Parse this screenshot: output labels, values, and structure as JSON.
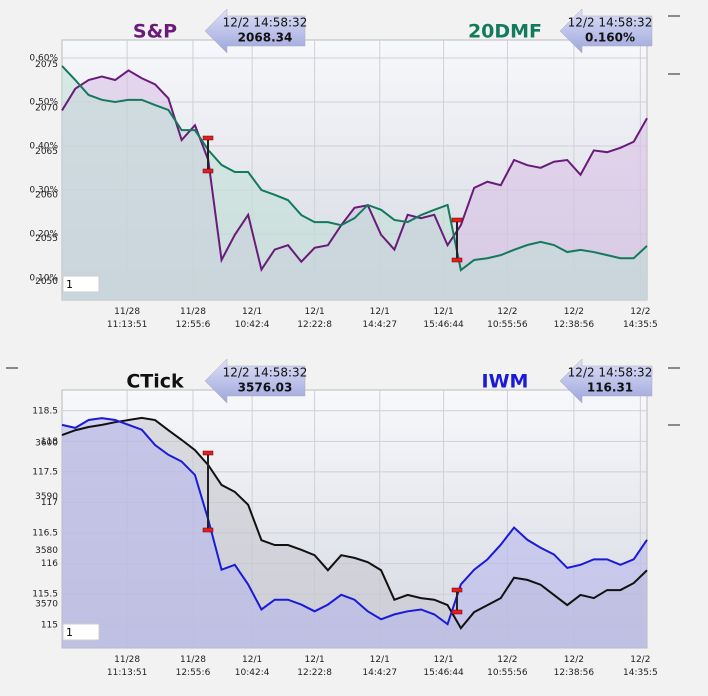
{
  "chart_data": [
    {
      "type": "line",
      "x": [
        0,
        1,
        2,
        3,
        4,
        5,
        6,
        7,
        8,
        9,
        10,
        11,
        12,
        13,
        14,
        15,
        16,
        17,
        18,
        19,
        20,
        21,
        22,
        23,
        24,
        25,
        26,
        27,
        28,
        29,
        30,
        31,
        32,
        33,
        34,
        35,
        36,
        37,
        38,
        39,
        40,
        41,
        42,
        43,
        44
      ],
      "xlim": [
        0,
        44
      ],
      "xticks": [
        {
          "value": 4.9,
          "label": "11/28 11:13:51"
        },
        {
          "value": 9.85,
          "label": "11/28 12:55:6"
        },
        {
          "value": 14.3,
          "label": "12/1 10:42:4"
        },
        {
          "value": 19,
          "label": "12/1 12:22:8"
        },
        {
          "value": 23.9,
          "label": "12/1 14:4:27"
        },
        {
          "value": 28.7,
          "label": "12/1 15:46:44"
        },
        {
          "value": 33.5,
          "label": "12/2 10:55:56"
        },
        {
          "value": 38.5,
          "label": "12/2 12:38:56"
        },
        {
          "value": 43.5,
          "label": "12/2 14:35:5"
        }
      ],
      "ylim": [
        2047.9,
        2077.8
      ],
      "yticks": [
        2050,
        2055,
        2060,
        2065,
        2070,
        2075
      ],
      "y2lim": [
        0.05,
        0.641
      ],
      "y2ticks": [
        {
          "value": 0.1,
          "label": "0.10%"
        },
        {
          "value": 0.2,
          "label": "0.20%"
        },
        {
          "value": 0.3,
          "label": "0.30%"
        },
        {
          "value": 0.4,
          "label": "0.40%"
        },
        {
          "value": 0.5,
          "label": "0.50%"
        },
        {
          "value": 0.6,
          "label": "0.60%"
        }
      ],
      "grid": true,
      "grid_axis": "y2",
      "box_label": "1",
      "series": [
        {
          "name": "S&P",
          "color": "#6a1b7a",
          "fill": "#d7bde3",
          "axis": "y",
          "values": [
            2069.7,
            2072.2,
            2073.2,
            2073.6,
            2073.2,
            2074.3,
            2073.4,
            2072.7,
            2071.1,
            2066.3,
            2068.0,
            2064.0,
            2052.5,
            2055.4,
            2057.7,
            2051.4,
            2053.7,
            2054.2,
            2052.3,
            2053.9,
            2054.2,
            2056.5,
            2058.5,
            2058.8,
            2055.4,
            2053.7,
            2057.7,
            2057.3,
            2057.7,
            2054.2,
            2056.5,
            2060.8,
            2061.5,
            2061.1,
            2064.0,
            2063.4,
            2063.1,
            2063.8,
            2064.0,
            2062.3,
            2065.1,
            2064.9,
            2065.4,
            2066.1,
            2068.8
          ],
          "callout": {
            "time": "12/2 14:58:32",
            "value": 2068.34
          }
        },
        {
          "name": "20DMF",
          "color": "#137a5c",
          "fill": "#bfe0d6",
          "axis": "y2",
          "values": [
            0.582,
            0.55,
            0.516,
            0.505,
            0.5,
            0.505,
            0.505,
            0.493,
            0.482,
            0.436,
            0.436,
            0.391,
            0.357,
            0.341,
            0.341,
            0.3,
            0.289,
            0.277,
            0.243,
            0.227,
            0.227,
            0.22,
            0.236,
            0.266,
            0.255,
            0.232,
            0.227,
            0.243,
            0.255,
            0.266,
            0.118,
            0.141,
            0.145,
            0.152,
            0.164,
            0.175,
            0.182,
            0.175,
            0.159,
            0.164,
            0.159,
            0.152,
            0.145,
            0.145,
            0.173
          ],
          "callout": {
            "time": "12/2 14:58:32",
            "value": 0.16,
            "label": "0.160%"
          }
        }
      ]
    },
    {
      "type": "line",
      "x": [
        0,
        1,
        2,
        3,
        4,
        5,
        6,
        7,
        8,
        9,
        10,
        11,
        12,
        13,
        14,
        15,
        16,
        17,
        18,
        19,
        20,
        21,
        22,
        23,
        24,
        25,
        26,
        27,
        28,
        29,
        30,
        31,
        32,
        33,
        34,
        35,
        36,
        37,
        38,
        39,
        40,
        41,
        42,
        43,
        44
      ],
      "xlim": [
        0,
        44
      ],
      "xticks": [
        {
          "value": 4.9,
          "label": "11/28 11:13:51"
        },
        {
          "value": 9.85,
          "label": "11/28 12:55:6"
        },
        {
          "value": 14.3,
          "label": "12/1 10:42:4"
        },
        {
          "value": 19,
          "label": "12/1 12:22:8"
        },
        {
          "value": 23.9,
          "label": "12/1 14:4:27"
        },
        {
          "value": 28.7,
          "label": "12/1 15:46:44"
        },
        {
          "value": 33.5,
          "label": "12/2 10:55:56"
        },
        {
          "value": 38.5,
          "label": "12/2 12:38:56"
        },
        {
          "value": 43.5,
          "label": "12/2 14:35:5"
        }
      ],
      "ylim": [
        114.62,
        118.84
      ],
      "yticks": [
        115,
        115.5,
        116,
        116.5,
        117,
        117.5,
        118,
        118.5
      ],
      "y2lim": [
        3561.8,
        3609.9
      ],
      "y2ticks": [
        3570,
        3580,
        3590,
        3600
      ],
      "grid": true,
      "grid_axis": "y",
      "box_label": "1",
      "series": [
        {
          "name": "CTick",
          "color": "#111111",
          "fill": "#c4c4cc",
          "axis": "y2",
          "values": [
            3601.5,
            3602.4,
            3603.0,
            3603.4,
            3603.9,
            3604.3,
            3604.7,
            3604.3,
            3602.4,
            3600.6,
            3598.7,
            3595.9,
            3592.2,
            3590.9,
            3588.5,
            3581.9,
            3581.0,
            3581.0,
            3580.1,
            3579.1,
            3576.3,
            3579.1,
            3578.6,
            3577.8,
            3576.3,
            3570.8,
            3571.7,
            3571.1,
            3570.8,
            3569.8,
            3565.5,
            3568.5,
            3569.8,
            3571.1,
            3574.9,
            3574.5,
            3573.6,
            3571.7,
            3569.8,
            3571.7,
            3571.1,
            3572.6,
            3572.6,
            3573.9,
            3576.3
          ],
          "callout": {
            "time": "12/2 14:58:32",
            "value": 3576.03
          }
        },
        {
          "name": "IWM",
          "color": "#1a1ad8",
          "fill": "#b4b4ec",
          "axis": "y",
          "values": [
            118.27,
            118.22,
            118.35,
            118.38,
            118.35,
            118.27,
            118.19,
            117.94,
            117.78,
            117.67,
            117.45,
            116.72,
            115.9,
            115.98,
            115.66,
            115.25,
            115.41,
            115.41,
            115.33,
            115.22,
            115.33,
            115.49,
            115.41,
            115.22,
            115.09,
            115.17,
            115.22,
            115.25,
            115.17,
            115.01,
            115.66,
            115.9,
            116.07,
            116.31,
            116.59,
            116.39,
            116.26,
            116.15,
            115.93,
            115.98,
            116.07,
            116.07,
            115.98,
            116.07,
            116.39
          ],
          "callout": {
            "time": "12/2 14:58:32",
            "value": 116.31
          }
        }
      ]
    }
  ]
}
